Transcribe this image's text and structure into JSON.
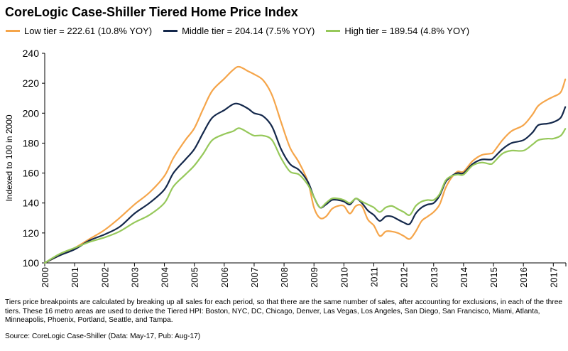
{
  "chart_data": {
    "type": "line",
    "title": "CoreLogic Case-Shiller Tiered Home Price Index",
    "ylabel": "Indexed to 100 in 2000",
    "xlabel": "",
    "ylim": [
      100,
      240
    ],
    "yticks": [
      "100",
      "120",
      "140",
      "160",
      "180",
      "200",
      "220",
      "240"
    ],
    "xticks": [
      "2000",
      "2001",
      "2002",
      "2003",
      "2004",
      "2005",
      "2006",
      "2007",
      "2008",
      "2009",
      "2010",
      "2011",
      "2012",
      "2013",
      "2014",
      "2015",
      "2016",
      "2017"
    ],
    "grid": false,
    "legend_position": "top",
    "series": [
      {
        "name": "Low tier = 222.61 (10.8% YOY)",
        "color": "#f5a54a",
        "points": [
          [
            2000.0,
            100
          ],
          [
            2000.5,
            105
          ],
          [
            2001.0,
            110
          ],
          [
            2001.5,
            116
          ],
          [
            2002.0,
            122
          ],
          [
            2002.5,
            130
          ],
          [
            2003.0,
            139
          ],
          [
            2003.5,
            147
          ],
          [
            2004.0,
            158
          ],
          [
            2004.3,
            170
          ],
          [
            2004.7,
            182
          ],
          [
            2005.0,
            190
          ],
          [
            2005.3,
            203
          ],
          [
            2005.6,
            215
          ],
          [
            2006.0,
            223
          ],
          [
            2006.3,
            229
          ],
          [
            2006.5,
            231
          ],
          [
            2006.8,
            228
          ],
          [
            2007.0,
            226
          ],
          [
            2007.3,
            222
          ],
          [
            2007.6,
            212
          ],
          [
            2007.9,
            194
          ],
          [
            2008.2,
            177
          ],
          [
            2008.5,
            167
          ],
          [
            2008.8,
            154
          ],
          [
            2009.0,
            137
          ],
          [
            2009.2,
            130
          ],
          [
            2009.4,
            131
          ],
          [
            2009.6,
            136
          ],
          [
            2009.8,
            138
          ],
          [
            2010.0,
            138
          ],
          [
            2010.2,
            133
          ],
          [
            2010.4,
            138
          ],
          [
            2010.6,
            138
          ],
          [
            2010.8,
            129
          ],
          [
            2011.0,
            125
          ],
          [
            2011.2,
            118
          ],
          [
            2011.4,
            121
          ],
          [
            2011.6,
            121
          ],
          [
            2011.8,
            120
          ],
          [
            2012.0,
            118
          ],
          [
            2012.2,
            116
          ],
          [
            2012.4,
            121
          ],
          [
            2012.6,
            128
          ],
          [
            2012.8,
            131
          ],
          [
            2013.0,
            134
          ],
          [
            2013.2,
            139
          ],
          [
            2013.4,
            150
          ],
          [
            2013.6,
            157
          ],
          [
            2013.8,
            161
          ],
          [
            2014.0,
            161
          ],
          [
            2014.3,
            168
          ],
          [
            2014.6,
            172
          ],
          [
            2014.9,
            173
          ],
          [
            2015.0,
            174
          ],
          [
            2015.3,
            182
          ],
          [
            2015.6,
            188
          ],
          [
            2016.0,
            192
          ],
          [
            2016.3,
            199
          ],
          [
            2016.5,
            205
          ],
          [
            2016.8,
            209
          ],
          [
            2017.0,
            211
          ],
          [
            2017.25,
            214
          ],
          [
            2017.4,
            222.61
          ]
        ]
      },
      {
        "name": "Middle tier = 204.14 (7.5% YOY)",
        "color": "#14284b",
        "points": [
          [
            2000.0,
            100
          ],
          [
            2000.5,
            105
          ],
          [
            2001.0,
            109
          ],
          [
            2001.5,
            115
          ],
          [
            2002.0,
            119
          ],
          [
            2002.5,
            124
          ],
          [
            2003.0,
            133
          ],
          [
            2003.5,
            140
          ],
          [
            2004.0,
            149
          ],
          [
            2004.3,
            160
          ],
          [
            2004.7,
            169
          ],
          [
            2005.0,
            176
          ],
          [
            2005.3,
            187
          ],
          [
            2005.6,
            197
          ],
          [
            2006.0,
            202
          ],
          [
            2006.3,
            206
          ],
          [
            2006.5,
            206
          ],
          [
            2006.8,
            203
          ],
          [
            2007.0,
            200
          ],
          [
            2007.3,
            198
          ],
          [
            2007.6,
            191
          ],
          [
            2007.9,
            176
          ],
          [
            2008.2,
            166
          ],
          [
            2008.5,
            162
          ],
          [
            2008.8,
            154
          ],
          [
            2009.0,
            144
          ],
          [
            2009.2,
            137
          ],
          [
            2009.4,
            139
          ],
          [
            2009.6,
            142
          ],
          [
            2009.8,
            142
          ],
          [
            2010.0,
            141
          ],
          [
            2010.2,
            139
          ],
          [
            2010.4,
            143
          ],
          [
            2010.6,
            140
          ],
          [
            2010.8,
            135
          ],
          [
            2011.0,
            132
          ],
          [
            2011.2,
            128
          ],
          [
            2011.4,
            131
          ],
          [
            2011.6,
            131
          ],
          [
            2011.8,
            129
          ],
          [
            2012.0,
            127
          ],
          [
            2012.2,
            126
          ],
          [
            2012.4,
            133
          ],
          [
            2012.6,
            137
          ],
          [
            2012.8,
            139
          ],
          [
            2013.0,
            140
          ],
          [
            2013.2,
            145
          ],
          [
            2013.4,
            154
          ],
          [
            2013.6,
            158
          ],
          [
            2013.8,
            160
          ],
          [
            2014.0,
            160
          ],
          [
            2014.3,
            166
          ],
          [
            2014.6,
            169
          ],
          [
            2014.9,
            169
          ],
          [
            2015.0,
            170
          ],
          [
            2015.3,
            176
          ],
          [
            2015.6,
            180
          ],
          [
            2016.0,
            182
          ],
          [
            2016.3,
            187
          ],
          [
            2016.5,
            192
          ],
          [
            2016.8,
            193
          ],
          [
            2017.0,
            194
          ],
          [
            2017.25,
            197
          ],
          [
            2017.4,
            204.14
          ]
        ]
      },
      {
        "name": "High tier = 189.54 (4.8% YOY)",
        "color": "#96c85a",
        "points": [
          [
            2000.0,
            100
          ],
          [
            2000.5,
            106
          ],
          [
            2001.0,
            110
          ],
          [
            2001.5,
            114
          ],
          [
            2002.0,
            117
          ],
          [
            2002.5,
            121
          ],
          [
            2003.0,
            127
          ],
          [
            2003.5,
            132
          ],
          [
            2004.0,
            140
          ],
          [
            2004.3,
            151
          ],
          [
            2004.7,
            159
          ],
          [
            2005.0,
            165
          ],
          [
            2005.3,
            173
          ],
          [
            2005.6,
            182
          ],
          [
            2006.0,
            186
          ],
          [
            2006.3,
            188
          ],
          [
            2006.5,
            190
          ],
          [
            2006.8,
            187
          ],
          [
            2007.0,
            185
          ],
          [
            2007.3,
            185
          ],
          [
            2007.6,
            182
          ],
          [
            2007.9,
            170
          ],
          [
            2008.2,
            161
          ],
          [
            2008.5,
            159
          ],
          [
            2008.8,
            152
          ],
          [
            2009.0,
            144
          ],
          [
            2009.2,
            137
          ],
          [
            2009.4,
            140
          ],
          [
            2009.6,
            143
          ],
          [
            2009.8,
            143
          ],
          [
            2010.0,
            142
          ],
          [
            2010.2,
            140
          ],
          [
            2010.4,
            143
          ],
          [
            2010.6,
            141
          ],
          [
            2010.8,
            139
          ],
          [
            2011.0,
            137
          ],
          [
            2011.2,
            134
          ],
          [
            2011.4,
            137
          ],
          [
            2011.6,
            138
          ],
          [
            2011.8,
            136
          ],
          [
            2012.0,
            134
          ],
          [
            2012.2,
            132
          ],
          [
            2012.4,
            138
          ],
          [
            2012.6,
            141
          ],
          [
            2012.8,
            142
          ],
          [
            2013.0,
            142
          ],
          [
            2013.2,
            146
          ],
          [
            2013.4,
            155
          ],
          [
            2013.6,
            158
          ],
          [
            2013.8,
            159
          ],
          [
            2014.0,
            159
          ],
          [
            2014.3,
            165
          ],
          [
            2014.6,
            167
          ],
          [
            2014.9,
            166
          ],
          [
            2015.0,
            167
          ],
          [
            2015.3,
            173
          ],
          [
            2015.6,
            175
          ],
          [
            2016.0,
            175
          ],
          [
            2016.3,
            179
          ],
          [
            2016.5,
            182
          ],
          [
            2016.8,
            183
          ],
          [
            2017.0,
            183
          ],
          [
            2017.25,
            185
          ],
          [
            2017.4,
            189.54
          ]
        ]
      }
    ],
    "footnote": "Tiers price breakpoints are calculated by breaking up all sales for each period, so that there are the same number of sales, after accounting for exclusions, in each of the three tiers. These 16 metro areas are used to derive the Tiered HPI: Boston, NYC, DC, Chicago, Denver, Las Vegas, Los Angeles, San Diego, San Francisco, Miami, Atlanta, Minneapolis, Phoenix, Portland, Seattle, and Tampa.",
    "source": "Source: CoreLogic Case-Shiller (Data: May-17, Pub: Aug-17)"
  }
}
